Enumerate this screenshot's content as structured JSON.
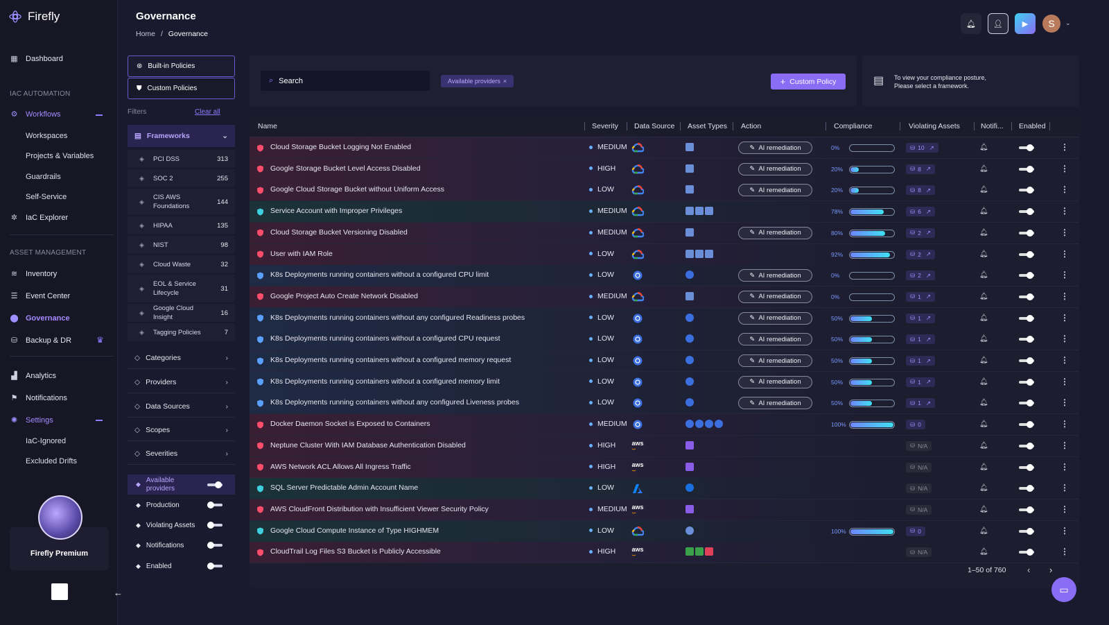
{
  "app": {
    "name": "Firefly"
  },
  "sidebar": {
    "dashboard": "Dashboard",
    "iac_section": "IAC AUTOMATION",
    "workflows": "Workflows",
    "workflow_items": [
      "Workspaces",
      "Projects & Variables",
      "Guardrails",
      "Self-Service"
    ],
    "iac_explorer": "IaC Explorer",
    "asset_section": "ASSET MANAGEMENT",
    "inventory": "Inventory",
    "event_center": "Event Center",
    "governance": "Governance",
    "backup": "Backup & DR",
    "analytics": "Analytics",
    "notifications": "Notifications",
    "settings": "Settings",
    "settings_items": [
      "IaC-Ignored",
      "Excluded Drifts"
    ],
    "premium": "Firefly Premium"
  },
  "header": {
    "title": "Governance",
    "breadcrumb_home": "Home",
    "breadcrumb_sep": "/",
    "breadcrumb_current": "Governance",
    "avatar_letter": "S"
  },
  "policies": {
    "builtin": "Built-in Policies",
    "custom": "Custom Policies",
    "filters": "Filters",
    "clear_all": "Clear all",
    "frameworks_label": "Frameworks",
    "frameworks": [
      {
        "name": "PCI DSS",
        "count": "313",
        "icon": "pci-icon"
      },
      {
        "name": "SOC 2",
        "count": "255",
        "icon": "soc-icon"
      },
      {
        "name": "CIS AWS Foundations",
        "count": "144",
        "icon": "cis-icon"
      },
      {
        "name": "HIPAA",
        "count": "135",
        "icon": "hipaa-icon"
      },
      {
        "name": "NIST",
        "count": "98",
        "icon": "nist-icon"
      },
      {
        "name": "Cloud Waste",
        "count": "32",
        "icon": "cloud-waste-icon"
      },
      {
        "name": "EOL & Service Lifecycle",
        "count": "31",
        "icon": "eol-icon"
      },
      {
        "name": "Google Cloud Insight",
        "count": "16",
        "icon": "gcloud-icon"
      },
      {
        "name": "Tagging Policies",
        "count": "7",
        "icon": "tag-icon"
      }
    ],
    "sections": [
      "Categories",
      "Providers",
      "Data Sources",
      "Scopes",
      "Severities"
    ],
    "toggles": [
      {
        "label": "Available providers",
        "on": true
      },
      {
        "label": "Production",
        "on": false
      },
      {
        "label": "Violating Assets",
        "on": false
      },
      {
        "label": "Notifications",
        "on": false
      },
      {
        "label": "Enabled",
        "on": false
      }
    ]
  },
  "toolbar": {
    "search_placeholder": "Search",
    "chip": "Available providers",
    "chip_close": "×",
    "custom_policy": "Custom Policy",
    "posture_line1": "To view your compliance posture,",
    "posture_line2": "Please select a framework."
  },
  "table": {
    "columns": [
      "Name",
      "Severity",
      "Data Source",
      "Asset Types",
      "Action",
      "Compliance",
      "Violating Assets",
      "Notifi...",
      "Enabled"
    ],
    "ai_label": "AI remediation",
    "rows": [
      {
        "name": "Cloud Storage Bucket Logging Not Enabled",
        "sev": "MEDIUM",
        "ds": "gcp",
        "ai": true,
        "pct": "0%",
        "p": 0,
        "viol": "10",
        "tone": "red",
        "icon": "#ff4d6d"
      },
      {
        "name": "Google Storage Bucket Level Access Disabled",
        "sev": "HIGH",
        "ds": "gcp",
        "ai": true,
        "pct": "20%",
        "p": 20,
        "viol": "8",
        "tone": "red",
        "icon": "#ff4d6d"
      },
      {
        "name": "Google Cloud Storage Bucket without Uniform Access",
        "sev": "LOW",
        "ds": "gcp",
        "ai": true,
        "pct": "20%",
        "p": 20,
        "viol": "8",
        "tone": "red",
        "icon": "#ff4d6d"
      },
      {
        "name": "Service Account with Improper Privileges",
        "sev": "MEDIUM",
        "ds": "gcp",
        "ai": false,
        "pct": "78%",
        "p": 78,
        "viol": "6",
        "tone": "teal",
        "icon": "#3fd0e0"
      },
      {
        "name": "Cloud Storage Bucket Versioning Disabled",
        "sev": "MEDIUM",
        "ds": "gcp",
        "ai": true,
        "pct": "80%",
        "p": 80,
        "viol": "2",
        "tone": "red",
        "icon": "#ff4d6d"
      },
      {
        "name": "User with IAM Role",
        "sev": "LOW",
        "ds": "gcp",
        "ai": false,
        "pct": "92%",
        "p": 92,
        "viol": "2",
        "tone": "red",
        "icon": "#ff4d6d"
      },
      {
        "name": "K8s Deployments running containers without a configured CPU limit",
        "sev": "LOW",
        "ds": "k8s",
        "ai": true,
        "pct": "0%",
        "p": 0,
        "viol": "2",
        "tone": "blue",
        "icon": "#5aa0ff"
      },
      {
        "name": "Google Project Auto Create Network Disabled",
        "sev": "MEDIUM",
        "ds": "gcp",
        "ai": true,
        "pct": "0%",
        "p": 0,
        "viol": "1",
        "tone": "red",
        "icon": "#ff4d6d"
      },
      {
        "name": "K8s Deployments running containers without any configured Readiness probes",
        "sev": "LOW",
        "ds": "k8s",
        "ai": true,
        "pct": "50%",
        "p": 50,
        "viol": "1",
        "tone": "blue",
        "icon": "#5aa0ff"
      },
      {
        "name": "K8s Deployments running containers without a configured CPU request",
        "sev": "LOW",
        "ds": "k8s",
        "ai": true,
        "pct": "50%",
        "p": 50,
        "viol": "1",
        "tone": "blue",
        "icon": "#5aa0ff"
      },
      {
        "name": "K8s Deployments running containers without a configured memory request",
        "sev": "LOW",
        "ds": "k8s",
        "ai": true,
        "pct": "50%",
        "p": 50,
        "viol": "1",
        "tone": "blue",
        "icon": "#5aa0ff"
      },
      {
        "name": "K8s Deployments running containers without a configured memory limit",
        "sev": "LOW",
        "ds": "k8s",
        "ai": true,
        "pct": "50%",
        "p": 50,
        "viol": "1",
        "tone": "blue",
        "icon": "#5aa0ff"
      },
      {
        "name": "K8s Deployments running containers without any configured Liveness probes",
        "sev": "LOW",
        "ds": "k8s",
        "ai": true,
        "pct": "50%",
        "p": 50,
        "viol": "1",
        "tone": "blue",
        "icon": "#5aa0ff"
      },
      {
        "name": "Docker Daemon Socket is Exposed to Containers",
        "sev": "MEDIUM",
        "ds": "k8s",
        "ai": false,
        "pct": "100%",
        "p": 100,
        "viol": "0",
        "tone": "red",
        "icon": "#ff4d6d"
      },
      {
        "name": "Neptune Cluster With IAM Database Authentication Disabled",
        "sev": "HIGH",
        "ds": "aws",
        "ai": false,
        "pct": "",
        "p": null,
        "viol": "N/A",
        "tone": "red",
        "icon": "#ff4d6d"
      },
      {
        "name": "AWS Network ACL Allows All Ingress Traffic",
        "sev": "HIGH",
        "ds": "aws",
        "ai": false,
        "pct": "",
        "p": null,
        "viol": "N/A",
        "tone": "red",
        "icon": "#ff4d6d"
      },
      {
        "name": "SQL Server Predictable Admin Account Name",
        "sev": "LOW",
        "ds": "azure",
        "ai": false,
        "pct": "",
        "p": null,
        "viol": "N/A",
        "tone": "teal",
        "icon": "#3fd0e0"
      },
      {
        "name": "AWS CloudFront Distribution with Insufficient Viewer Security Policy",
        "sev": "MEDIUM",
        "ds": "aws",
        "ai": false,
        "pct": "",
        "p": null,
        "viol": "N/A",
        "tone": "red",
        "icon": "#ff4d6d"
      },
      {
        "name": "Google Cloud Compute Instance of Type HIGHMEM",
        "sev": "LOW",
        "ds": "gcp",
        "ai": false,
        "pct": "100%",
        "p": 100,
        "viol": "0",
        "tone": "teal",
        "icon": "#3fd0e0"
      },
      {
        "name": "CloudTrail Log Files S3 Bucket is Publicly Accessible",
        "sev": "HIGH",
        "ds": "aws",
        "ai": false,
        "pct": "",
        "p": null,
        "viol": "N/A",
        "tone": "red",
        "icon": "#ff4d6d"
      }
    ],
    "pagination": "1–50 of 760"
  }
}
